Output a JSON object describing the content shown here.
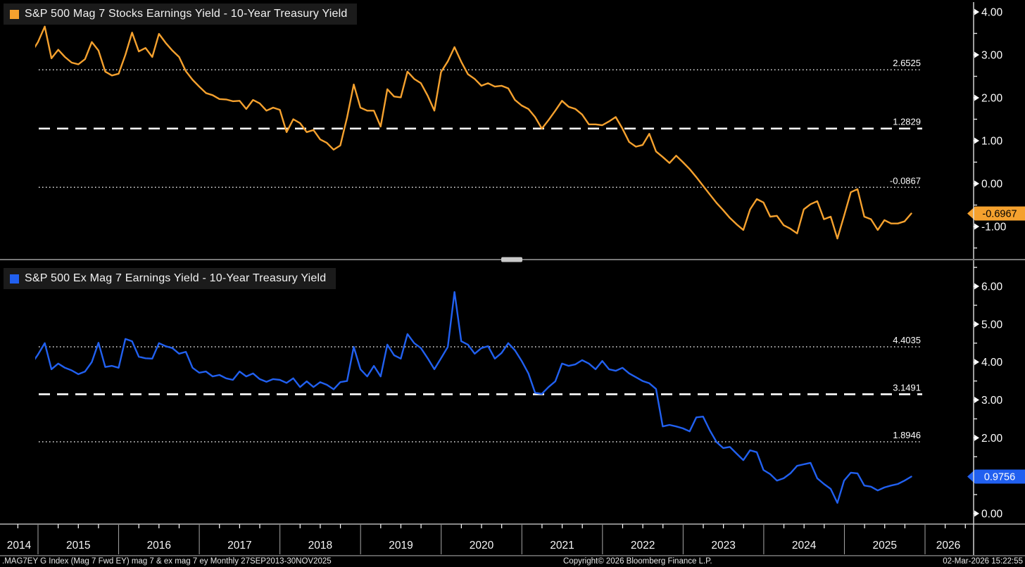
{
  "chart_data": [
    {
      "type": "line",
      "title": "S&P 500 Mag 7 Stocks Earnings Yield - 10-Year Treasury Yield",
      "color": "#F5A12E",
      "frequency": "monthly",
      "x_start": "2014-12",
      "x_end": "2025-11",
      "ylim": [
        -1.64,
        4.28
      ],
      "yticks": [
        {
          "v": 4,
          "label": "4.00"
        },
        {
          "v": 3,
          "label": "3.00"
        },
        {
          "v": 2,
          "label": "2.00"
        },
        {
          "v": 1,
          "label": "1.00"
        },
        {
          "v": 0,
          "label": "0.00"
        },
        {
          "v": -1,
          "label": "-1.00"
        }
      ],
      "ref_lines": [
        {
          "v": 2.6525,
          "label": "2.6525",
          "style": "dotted"
        },
        {
          "v": 1.2829,
          "label": "1.2829",
          "style": "dashed"
        },
        {
          "v": -0.0867,
          "label": "-0.0867",
          "style": "dotted"
        }
      ],
      "badge": {
        "label": "-0.6967",
        "v": -0.6967,
        "bg": "#F5A12E",
        "fg": "#000000"
      },
      "values": [
        3.05,
        3.3,
        3.66,
        2.92,
        3.12,
        2.95,
        2.82,
        2.78,
        2.9,
        3.3,
        3.1,
        2.61,
        2.52,
        2.56,
        3.0,
        3.52,
        3.08,
        3.16,
        2.95,
        3.49,
        3.28,
        3.1,
        2.95,
        2.62,
        2.42,
        2.26,
        2.11,
        2.06,
        1.97,
        1.96,
        1.92,
        1.93,
        1.74,
        1.95,
        1.87,
        1.7,
        1.77,
        1.72,
        1.2,
        1.5,
        1.41,
        1.2,
        1.25,
        1.03,
        0.95,
        0.79,
        0.89,
        1.54,
        2.31,
        1.77,
        1.7,
        1.7,
        1.33,
        2.2,
        2.03,
        2.01,
        2.61,
        2.44,
        2.34,
        2.05,
        1.7,
        2.6,
        2.85,
        3.18,
        2.84,
        2.55,
        2.44,
        2.28,
        2.34,
        2.26,
        2.28,
        2.22,
        1.95,
        1.82,
        1.74,
        1.55,
        1.28,
        1.48,
        1.7,
        1.93,
        1.79,
        1.74,
        1.61,
        1.38,
        1.38,
        1.36,
        1.45,
        1.55,
        1.28,
        0.97,
        0.86,
        0.9,
        1.16,
        0.75,
        0.62,
        0.48,
        0.65,
        0.5,
        0.34,
        0.15,
        -0.05,
        -0.25,
        -0.45,
        -0.62,
        -0.8,
        -0.95,
        -1.08,
        -0.6,
        -0.36,
        -0.44,
        -0.77,
        -0.75,
        -0.97,
        -1.05,
        -1.16,
        -0.6,
        -0.48,
        -0.41,
        -0.83,
        -0.77,
        -1.28,
        -0.75,
        -0.2,
        -0.13,
        -0.77,
        -0.83,
        -1.08,
        -0.85,
        -0.93,
        -0.93,
        -0.88,
        -0.6967
      ]
    },
    {
      "type": "line",
      "title": "S&P 500 Ex Mag 7 Earnings Yield - 10-Year Treasury Yield",
      "color": "#2160F0",
      "frequency": "monthly",
      "x_start": "2014-12",
      "x_end": "2025-11",
      "ylim": [
        -0.28,
        6.65
      ],
      "yticks": [
        {
          "v": 6,
          "label": "6.00"
        },
        {
          "v": 5,
          "label": "5.00"
        },
        {
          "v": 4,
          "label": "4.00"
        },
        {
          "v": 3,
          "label": "3.00"
        },
        {
          "v": 2,
          "label": "2.00"
        },
        {
          "v": 1,
          "label": "1.00"
        },
        {
          "v": 0,
          "label": "0.00"
        }
      ],
      "ref_lines": [
        {
          "v": 4.4035,
          "label": "4.4035",
          "style": "dotted"
        },
        {
          "v": 3.1491,
          "label": "3.1491",
          "style": "dashed"
        },
        {
          "v": 1.8946,
          "label": "1.8946",
          "style": "dotted"
        }
      ],
      "badge": {
        "label": "0.9756",
        "v": 0.9756,
        "bg": "#2160F0",
        "fg": "#ffffff"
      },
      "values": [
        3.94,
        4.2,
        4.5,
        3.81,
        3.96,
        3.85,
        3.78,
        3.68,
        3.75,
        4.0,
        4.51,
        3.87,
        3.9,
        3.85,
        4.61,
        4.55,
        4.14,
        4.1,
        4.09,
        4.5,
        4.42,
        4.37,
        4.22,
        4.27,
        3.85,
        3.72,
        3.75,
        3.62,
        3.66,
        3.57,
        3.53,
        3.75,
        3.62,
        3.7,
        3.55,
        3.48,
        3.55,
        3.53,
        3.45,
        3.57,
        3.34,
        3.49,
        3.34,
        3.47,
        3.4,
        3.28,
        3.47,
        3.5,
        4.4,
        3.81,
        3.62,
        3.9,
        3.62,
        4.46,
        4.18,
        4.09,
        4.74,
        4.5,
        4.37,
        4.1,
        3.81,
        4.1,
        4.4,
        5.85,
        4.55,
        4.46,
        4.22,
        4.37,
        4.42,
        4.09,
        4.24,
        4.5,
        4.31,
        4.03,
        3.7,
        3.19,
        3.16,
        3.34,
        3.49,
        3.96,
        3.9,
        3.94,
        4.05,
        3.96,
        3.81,
        4.03,
        3.81,
        3.77,
        3.85,
        3.7,
        3.6,
        3.5,
        3.44,
        3.29,
        2.3,
        2.34,
        2.3,
        2.25,
        2.17,
        2.54,
        2.56,
        2.2,
        1.89,
        1.73,
        1.76,
        1.58,
        1.41,
        1.67,
        1.62,
        1.15,
        1.04,
        0.87,
        0.93,
        1.06,
        1.26,
        1.3,
        1.34,
        0.93,
        0.78,
        0.65,
        0.28,
        0.87,
        1.08,
        1.06,
        0.74,
        0.71,
        0.61,
        0.69,
        0.74,
        0.78,
        0.87,
        0.9756
      ]
    }
  ],
  "x_axis": {
    "years": [
      "2014",
      "2015",
      "2016",
      "2017",
      "2018",
      "2019",
      "2020",
      "2021",
      "2022",
      "2023",
      "2024",
      "2025",
      "2026"
    ]
  },
  "footer": {
    "left": ".MAG7EY G Index (Mag 7 Fwd EY) mag 7 & ex mag 7 ey Monthly 27SEP2013-30NOV2025",
    "center": "Copyright© 2026 Bloomberg Finance L.P.",
    "right": "02-Mar-2026 15:22:55"
  }
}
